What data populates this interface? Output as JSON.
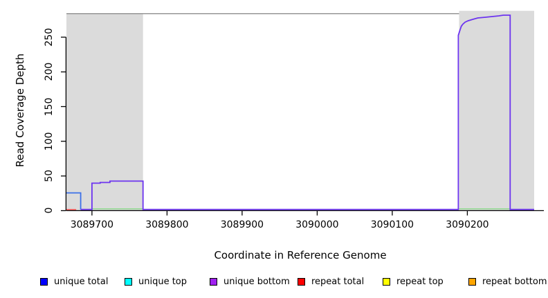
{
  "figure": {
    "xlabel": "Coordinate in Reference Genome",
    "ylabel": "Read Coverage Depth",
    "background": "#ffffff"
  },
  "chart_data": {
    "type": "line",
    "title": "",
    "xlabel": "Coordinate in Reference Genome",
    "ylabel": "Read Coverage Depth",
    "xlim": [
      3089666,
      3090289
    ],
    "ylim": [
      0,
      283
    ],
    "grid": false,
    "legend_position": "bottom",
    "x_ticks": [
      {
        "value": 3089700,
        "label": "3089700"
      },
      {
        "value": 3089800,
        "label": "3089800"
      },
      {
        "value": 3089900,
        "label": "3089900"
      },
      {
        "value": 3090000,
        "label": "3090000"
      },
      {
        "value": 3090100,
        "label": "3090100"
      },
      {
        "value": 3090200,
        "label": "3090200"
      }
    ],
    "y_ticks": [
      {
        "value": 0,
        "label": "0"
      },
      {
        "value": 50,
        "label": "50"
      },
      {
        "value": 100,
        "label": "100"
      },
      {
        "value": 150,
        "label": "150"
      },
      {
        "value": 200,
        "label": "200"
      },
      {
        "value": 250,
        "label": "250"
      }
    ],
    "shaded_regions": [
      {
        "x1": 3089666,
        "x2": 3089768,
        "top_value": 284,
        "fill": "#dbdbdb"
      },
      {
        "x1": 3090189,
        "x2": 3090289,
        "top_value": 288,
        "fill": "#dbdbdb"
      }
    ],
    "top_line": {
      "x1": 3089666,
      "x2": 3090189,
      "value": 284,
      "color": "#969696"
    },
    "series": [
      {
        "name": "repeat total",
        "color": "#ff5a5a",
        "width": 1.5,
        "points": [
          [
            3089666,
            0
          ],
          [
            3089679,
            0
          ]
        ]
      },
      {
        "name": "green zero line left",
        "color": "#8fd88f",
        "width": 1.5,
        "points": [
          [
            3089700,
            1
          ],
          [
            3089768,
            1
          ]
        ]
      },
      {
        "name": "green zero line right",
        "color": "#8fd88f",
        "width": 1.5,
        "points": [
          [
            3090189,
            1
          ],
          [
            3090257,
            1
          ]
        ]
      },
      {
        "name": "unique total",
        "color": "#3b6fe8",
        "width": 1.8,
        "points": [
          [
            3089666,
            24
          ],
          [
            3089685,
            24
          ],
          [
            3089685,
            0
          ]
        ]
      },
      {
        "name": "unique bottom",
        "color": "#6c33f0",
        "width": 1.8,
        "points": [
          [
            3089685,
            0
          ],
          [
            3089700,
            0
          ],
          [
            3089700,
            38
          ],
          [
            3089711,
            38
          ],
          [
            3089711,
            39
          ],
          [
            3089724,
            39
          ],
          [
            3089724,
            41
          ],
          [
            3089768,
            41
          ],
          [
            3089768,
            0
          ],
          [
            3090188,
            0
          ],
          [
            3090188,
            251
          ],
          [
            3090190,
            258
          ],
          [
            3090192,
            264
          ],
          [
            3090194,
            267
          ],
          [
            3090197,
            270
          ],
          [
            3090201,
            272
          ],
          [
            3090207,
            274
          ],
          [
            3090214,
            276
          ],
          [
            3090224,
            277
          ],
          [
            3090233,
            278
          ],
          [
            3090242,
            279
          ],
          [
            3090248,
            280
          ],
          [
            3090257,
            280
          ],
          [
            3090257,
            0
          ],
          [
            3090289,
            0
          ]
        ]
      }
    ]
  },
  "legend": {
    "items": [
      {
        "label": "unique total",
        "color": "#0000ff"
      },
      {
        "label": "unique top",
        "color": "#00ffff"
      },
      {
        "label": "unique bottom",
        "color": "#a020f0"
      },
      {
        "label": "repeat total",
        "color": "#ff0000"
      },
      {
        "label": "repeat top",
        "color": "#ffff00"
      },
      {
        "label": "repeat bottom",
        "color": "#ffa500"
      }
    ]
  }
}
